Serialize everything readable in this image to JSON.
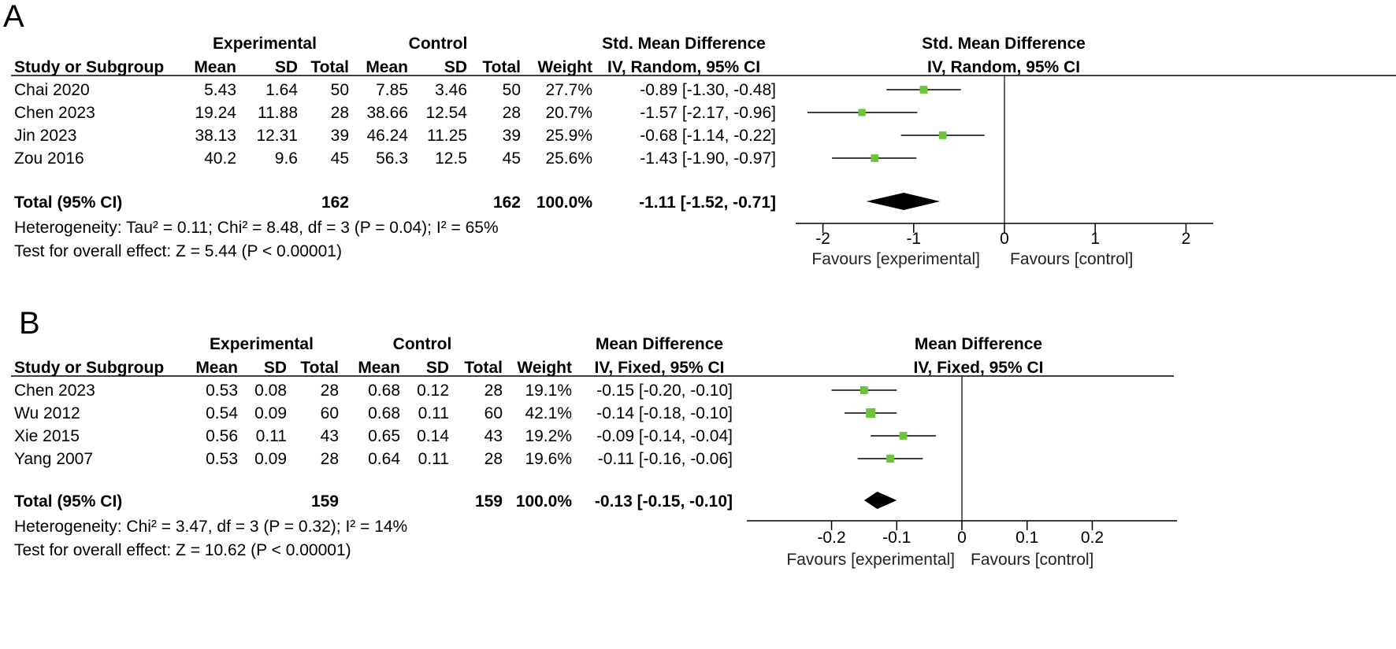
{
  "chart_data": [
    {
      "type": "forest",
      "panel_label": "A",
      "headers": {
        "experimental": "Experimental",
        "control": "Control",
        "effect_title": "Std. Mean Difference",
        "effect_method": "IV, Random, 95% CI",
        "study": "Study or Subgroup",
        "mean": "Mean",
        "sd": "SD",
        "total": "Total",
        "weight": "Weight"
      },
      "studies": [
        {
          "name": "Chai 2020",
          "exp_mean": "5.43",
          "exp_sd": "1.64",
          "exp_total": "50",
          "ctl_mean": "7.85",
          "ctl_sd": "3.46",
          "ctl_total": "50",
          "weight": "27.7%",
          "ci_text": "-0.89 [-1.30, -0.48]",
          "estimate": -0.89,
          "lower": -1.3,
          "upper": -0.48,
          "weight_value": 27.7
        },
        {
          "name": "Chen 2023",
          "exp_mean": "19.24",
          "exp_sd": "11.88",
          "exp_total": "28",
          "ctl_mean": "38.66",
          "ctl_sd": "12.54",
          "ctl_total": "28",
          "weight": "20.7%",
          "ci_text": "-1.57 [-2.17, -0.96]",
          "estimate": -1.57,
          "lower": -2.17,
          "upper": -0.96,
          "weight_value": 20.7
        },
        {
          "name": "Jin 2023",
          "exp_mean": "38.13",
          "exp_sd": "12.31",
          "exp_total": "39",
          "ctl_mean": "46.24",
          "ctl_sd": "11.25",
          "ctl_total": "39",
          "weight": "25.9%",
          "ci_text": "-0.68 [-1.14, -0.22]",
          "estimate": -0.68,
          "lower": -1.14,
          "upper": -0.22,
          "weight_value": 25.9
        },
        {
          "name": "Zou 2016",
          "exp_mean": "40.2",
          "exp_sd": "9.6",
          "exp_total": "45",
          "ctl_mean": "56.3",
          "ctl_sd": "12.5",
          "ctl_total": "45",
          "weight": "25.6%",
          "ci_text": "-1.43 [-1.90, -0.97]",
          "estimate": -1.43,
          "lower": -1.9,
          "upper": -0.97,
          "weight_value": 25.6
        }
      ],
      "total": {
        "label": "Total (95% CI)",
        "exp_total": "162",
        "ctl_total": "162",
        "weight": "100.0%",
        "ci_text": "-1.11 [-1.52, -0.71]",
        "estimate": -1.11,
        "lower": -1.52,
        "upper": -0.71
      },
      "heterogeneity": "Heterogeneity: Tau² = 0.11; Chi² = 8.48, df = 3 (P = 0.04); I² = 65%",
      "overall_effect": "Test for overall effect: Z = 5.44 (P < 0.00001)",
      "axis": {
        "min": -2.3,
        "max": 2.3,
        "ticks": [
          -2,
          -1,
          0,
          1,
          2
        ],
        "tick_labels": [
          "-2",
          "-1",
          "0",
          "1",
          "2"
        ]
      },
      "favours_left": "Favours [experimental]",
      "favours_right": "Favours [control]"
    },
    {
      "type": "forest",
      "panel_label": "B",
      "headers": {
        "experimental": "Experimental",
        "control": "Control",
        "effect_title": "Mean Difference",
        "effect_method": "IV, Fixed, 95% CI",
        "study": "Study or Subgroup",
        "mean": "Mean",
        "sd": "SD",
        "total": "Total",
        "weight": "Weight"
      },
      "studies": [
        {
          "name": "Chen 2023",
          "exp_mean": "0.53",
          "exp_sd": "0.08",
          "exp_total": "28",
          "ctl_mean": "0.68",
          "ctl_sd": "0.12",
          "ctl_total": "28",
          "weight": "19.1%",
          "ci_text": "-0.15 [-0.20, -0.10]",
          "estimate": -0.15,
          "lower": -0.2,
          "upper": -0.1,
          "weight_value": 19.1
        },
        {
          "name": "Wu 2012",
          "exp_mean": "0.54",
          "exp_sd": "0.09",
          "exp_total": "60",
          "ctl_mean": "0.68",
          "ctl_sd": "0.11",
          "ctl_total": "60",
          "weight": "42.1%",
          "ci_text": "-0.14 [-0.18, -0.10]",
          "estimate": -0.14,
          "lower": -0.18,
          "upper": -0.1,
          "weight_value": 42.1
        },
        {
          "name": "Xie 2015",
          "exp_mean": "0.56",
          "exp_sd": "0.11",
          "exp_total": "43",
          "ctl_mean": "0.65",
          "ctl_sd": "0.14",
          "ctl_total": "43",
          "weight": "19.2%",
          "ci_text": "-0.09 [-0.14, -0.04]",
          "estimate": -0.09,
          "lower": -0.14,
          "upper": -0.04,
          "weight_value": 19.2
        },
        {
          "name": "Yang 2007",
          "exp_mean": "0.53",
          "exp_sd": "0.09",
          "exp_total": "28",
          "ctl_mean": "0.64",
          "ctl_sd": "0.11",
          "ctl_total": "28",
          "weight": "19.6%",
          "ci_text": "-0.11 [-0.16, -0.06]",
          "estimate": -0.11,
          "lower": -0.16,
          "upper": -0.06,
          "weight_value": 19.6
        }
      ],
      "total": {
        "label": "Total (95% CI)",
        "exp_total": "159",
        "ctl_total": "159",
        "weight": "100.0%",
        "ci_text": "-0.13 [-0.15, -0.10]",
        "estimate": -0.13,
        "lower": -0.15,
        "upper": -0.1
      },
      "heterogeneity": "Heterogeneity: Chi² = 3.47, df = 3 (P = 0.32); I² = 14%",
      "overall_effect": "Test for overall effect: Z = 10.62 (P < 0.00001)",
      "axis": {
        "min": -0.33,
        "max": 0.33,
        "ticks": [
          -0.2,
          -0.1,
          0,
          0.1,
          0.2
        ],
        "tick_labels": [
          "-0.2",
          "-0.1",
          "0",
          "0.1",
          "0.2"
        ]
      },
      "favours_left": "Favours [experimental]",
      "favours_right": "Favours [control]"
    }
  ],
  "colors": {
    "marker": "#6cc43c",
    "diamond": "#000000",
    "line": "#000000"
  }
}
